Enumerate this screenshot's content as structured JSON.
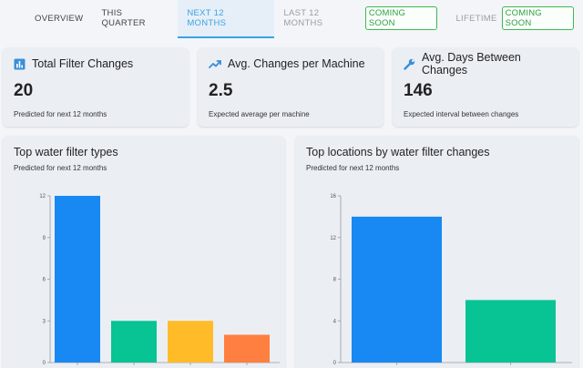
{
  "tabs": [
    {
      "label": "Overview",
      "state": "normal"
    },
    {
      "label": "This Quarter",
      "state": "normal"
    },
    {
      "label": "Next 12 Months",
      "state": "active"
    },
    {
      "label": "Last 12 Months",
      "state": "disabled",
      "badge": "COMING SOON"
    },
    {
      "label": "Lifetime",
      "state": "disabled",
      "badge": "COMING SOON"
    }
  ],
  "stats": [
    {
      "icon": "bar-chart-icon",
      "title": "Total Filter Changes",
      "value": "20",
      "sub": "Predicted for next 12 months"
    },
    {
      "icon": "trending-up-icon",
      "title": "Avg. Changes per Machine",
      "value": "2.5",
      "sub": "Expected average per machine"
    },
    {
      "icon": "wrench-icon",
      "title": "Avg. Days Between Changes",
      "value": "146",
      "sub": "Expected interval between changes"
    }
  ],
  "colors": {
    "accent": "#3ba3e6",
    "badge_green": "#2f9e44",
    "bar_blue": "#1888f2",
    "bar_green": "#08c394",
    "bar_yellow": "#ffbb28",
    "bar_orange": "#ff7f41"
  },
  "charts": [
    {
      "title": "Top water filter types",
      "subtitle": "Predicted for next 12 months"
    },
    {
      "title": "Top locations by water filter changes",
      "subtitle": "Predicted for next 12 months"
    }
  ],
  "chart_data": [
    {
      "type": "bar",
      "title": "Top water filter types",
      "subtitle": "Predicted for next 12 months",
      "values": [
        12,
        3,
        3,
        2
      ],
      "colors": [
        "#1888f2",
        "#08c394",
        "#ffbb28",
        "#ff7f41"
      ],
      "ylim": [
        0,
        12
      ],
      "yticks": [
        "0",
        "3",
        "6",
        "9",
        "12"
      ],
      "grid": false,
      "legend": "none"
    },
    {
      "type": "bar",
      "title": "Top locations by water filter changes",
      "subtitle": "Predicted for next 12 months",
      "values": [
        14,
        6
      ],
      "colors": [
        "#1888f2",
        "#08c394"
      ],
      "ylim": [
        0,
        16
      ],
      "yticks": [
        "0",
        "4",
        "8",
        "12",
        "16"
      ],
      "grid": false,
      "legend": "none"
    }
  ]
}
